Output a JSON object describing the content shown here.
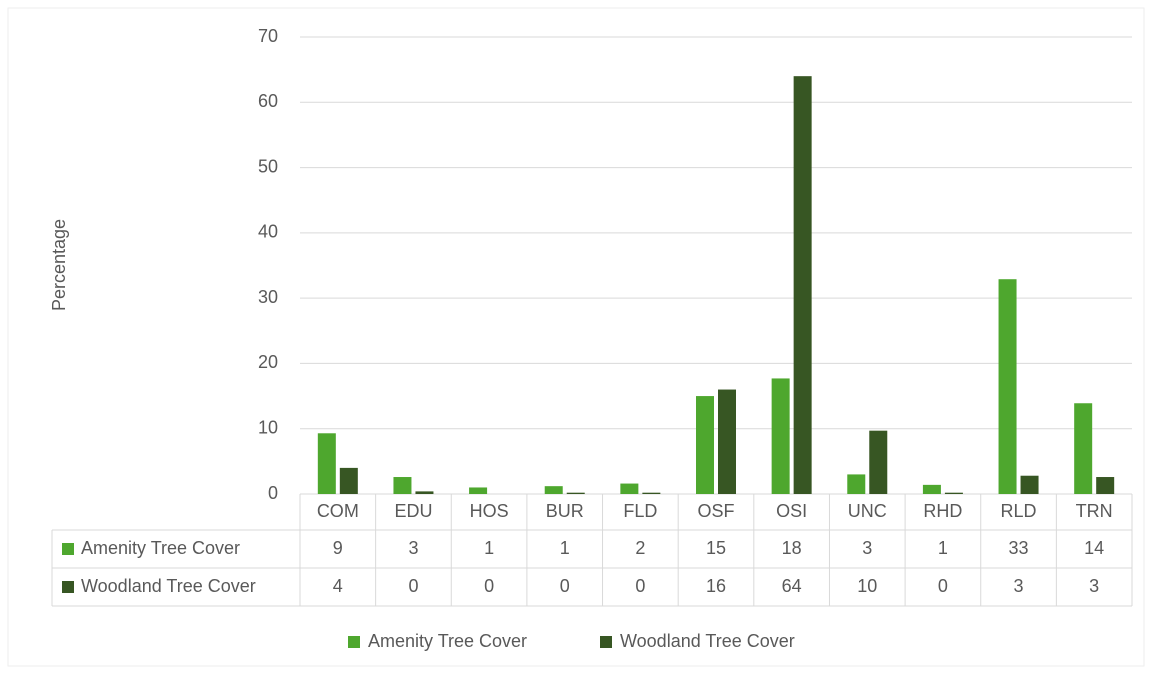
{
  "chart_data": {
    "type": "bar",
    "y_label": "Percentage",
    "categories": [
      "COM",
      "EDU",
      "HOS",
      "BUR",
      "FLD",
      "OSF",
      "OSI",
      "UNC",
      "RHD",
      "RLD",
      "TRN"
    ],
    "series": [
      {
        "name": "Amenity Tree Cover",
        "color": "#4ea72e",
        "values": [
          9.3,
          2.6,
          1.0,
          1.2,
          1.6,
          15.0,
          17.7,
          3.0,
          1.4,
          32.9,
          13.9
        ],
        "value_labels": [
          "9",
          "3",
          "1",
          "1",
          "2",
          "15",
          "18",
          "3",
          "1",
          "33",
          "14"
        ]
      },
      {
        "name": "Woodland Tree Cover",
        "color": "#375623",
        "values": [
          4.0,
          0.4,
          0,
          0.2,
          0.2,
          16.0,
          64.0,
          9.7,
          0.2,
          2.8,
          2.6
        ],
        "value_labels": [
          "4",
          "0",
          "0",
          "0",
          "0",
          "16",
          "64",
          "10",
          "0",
          "3",
          "3"
        ]
      }
    ],
    "ylim": [
      0,
      70
    ],
    "yticks": [
      0,
      10,
      20,
      30,
      40,
      50,
      60,
      70
    ],
    "grid": true,
    "legend": "bottom"
  }
}
